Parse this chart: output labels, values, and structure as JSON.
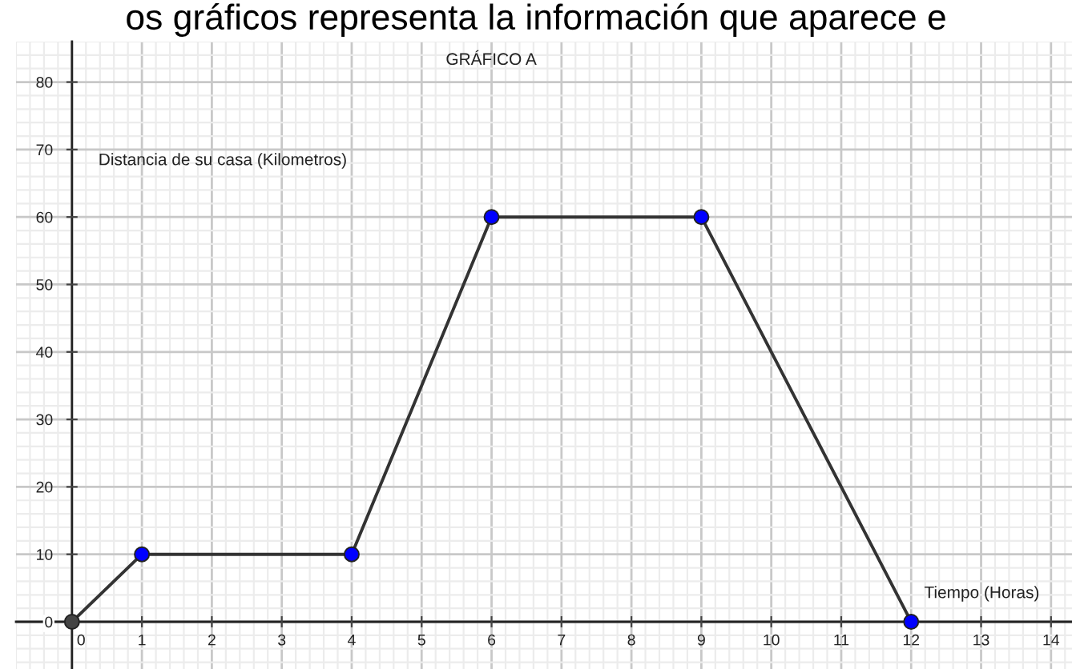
{
  "chart_data": {
    "type": "line",
    "title": "GRÁFICO A",
    "xlabel": "Tiempo (Horas)",
    "ylabel": "Distancia de su casa (Kilometros)",
    "annotations": [
      "os gráficos representa la información que aparece e"
    ],
    "x": [
      0,
      1,
      4,
      6,
      9,
      12
    ],
    "series": [
      {
        "values": [
          0,
          10,
          10,
          60,
          60,
          0
        ],
        "color": "#333333",
        "colors": [
          "#444444",
          "#0000ff",
          "#0000ff",
          "#0000ff",
          "#0000ff",
          "#0000ff"
        ]
      }
    ],
    "xlim": [
      -0.8,
      14.3
    ],
    "ylim": [
      -7,
      86
    ],
    "xticks": [
      0,
      1,
      2,
      3,
      4,
      5,
      6,
      7,
      8,
      9,
      10,
      11,
      12,
      13,
      14
    ],
    "yticks": [
      0,
      10,
      20,
      30,
      40,
      50,
      60,
      70,
      80
    ],
    "grid": true,
    "marker": "circle",
    "line_style": "solid"
  }
}
